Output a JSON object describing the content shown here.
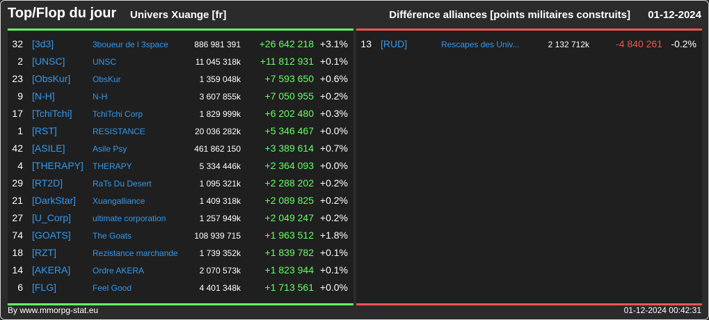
{
  "header": {
    "title": "Top/Flop du jour",
    "universe": "Univers Xuange [fr]",
    "subtitle": "Différence alliances [points militaires construits]",
    "date": "01-12-2024"
  },
  "colors": {
    "positive": "#66ff66",
    "negative": "#ee5555",
    "link": "#3399ee",
    "background": "#2b2b2b"
  },
  "top": [
    {
      "rank": "32",
      "tag": "[3d3]",
      "name": "3boueur de l 3space",
      "points": "886 981 391",
      "diff": "+26 642 218",
      "pct": "+3.1%"
    },
    {
      "rank": "2",
      "tag": "[UNSC]",
      "name": "UNSC",
      "points": "11 045 318k",
      "diff": "+11 812 931",
      "pct": "+0.1%"
    },
    {
      "rank": "23",
      "tag": "[ObsKur]",
      "name": "ObsKur",
      "points": "1 359 048k",
      "diff": "+7 593 650",
      "pct": "+0.6%"
    },
    {
      "rank": "9",
      "tag": "[N-H]",
      "name": "N-H",
      "points": "3 607 855k",
      "diff": "+7 050 955",
      "pct": "+0.2%"
    },
    {
      "rank": "17",
      "tag": "[TchiTchi]",
      "name": "TchiTchi Corp",
      "points": "1 829 999k",
      "diff": "+6 202 480",
      "pct": "+0.3%"
    },
    {
      "rank": "1",
      "tag": "[RST]",
      "name": "RESISTANCE",
      "points": "20 036 282k",
      "diff": "+5 346 467",
      "pct": "+0.0%"
    },
    {
      "rank": "42",
      "tag": "[ASILE]",
      "name": "Asile Psy",
      "points": "461 862 150",
      "diff": "+3 389 614",
      "pct": "+0.7%"
    },
    {
      "rank": "4",
      "tag": "[THERAPY]",
      "name": "THERAPY",
      "points": "5 334 446k",
      "diff": "+2 364 093",
      "pct": "+0.0%"
    },
    {
      "rank": "29",
      "tag": "[RT2D]",
      "name": "RaTs Du Desert",
      "points": "1 095 321k",
      "diff": "+2 288 202",
      "pct": "+0.2%"
    },
    {
      "rank": "21",
      "tag": "[DarkStar]",
      "name": "Xuangalliance",
      "points": "1 409 318k",
      "diff": "+2 089 825",
      "pct": "+0.2%"
    },
    {
      "rank": "27",
      "tag": "[U_Corp]",
      "name": "ultimate corporation",
      "points": "1 257 949k",
      "diff": "+2 049 247",
      "pct": "+0.2%"
    },
    {
      "rank": "74",
      "tag": "[GOATS]",
      "name": "The Goats",
      "points": "108 939 715",
      "diff": "+1 963 512",
      "pct": "+1.8%"
    },
    {
      "rank": "18",
      "tag": "[RZT]",
      "name": "Rezistance marchande",
      "points": "1 739 352k",
      "diff": "+1 839 782",
      "pct": "+0.1%"
    },
    {
      "rank": "14",
      "tag": "[AKERA]",
      "name": "Ordre AKERA",
      "points": "2 070 573k",
      "diff": "+1 823 944",
      "pct": "+0.1%"
    },
    {
      "rank": "6",
      "tag": "[FLG]",
      "name": "Feel Good",
      "points": "4 401 348k",
      "diff": "+1 713 561",
      "pct": "+0.0%"
    }
  ],
  "flop": [
    {
      "rank": "13",
      "tag": "[RUD]",
      "name": "Rescapes des Univ...",
      "points": "2 132 712k",
      "diff": "-4 840 261",
      "pct": "-0.2%"
    }
  ],
  "footer": {
    "source": "By www.mmorpg-stat.eu",
    "timestamp": "01-12-2024 00:42:31"
  }
}
